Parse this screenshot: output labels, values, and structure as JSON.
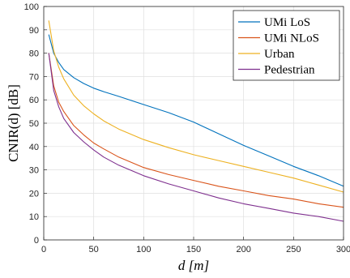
{
  "chart_data": {
    "type": "line",
    "xlabel": "d [m]",
    "ylabel": "CNIR(d) [dB]",
    "xlim": [
      0,
      300
    ],
    "ylim": [
      0,
      100
    ],
    "xticks": [
      0,
      50,
      100,
      150,
      200,
      250,
      300
    ],
    "yticks": [
      0,
      10,
      20,
      30,
      40,
      50,
      60,
      70,
      80,
      90,
      100
    ],
    "grid": true,
    "legend_position": "top-right",
    "colors": {
      "umi_los": "#0072BD",
      "umi_nlos": "#D95319",
      "urban": "#EDB120",
      "pedestrian": "#7E2F8E"
    },
    "series": [
      {
        "name": "UMi LoS",
        "color": "#0072BD",
        "x": [
          5,
          10,
          15,
          20,
          30,
          40,
          50,
          60,
          75,
          100,
          125,
          150,
          175,
          200,
          225,
          250,
          275,
          300
        ],
        "y": [
          88,
          80,
          76,
          73,
          69.5,
          67,
          65,
          63.5,
          61.5,
          58,
          54.5,
          50.5,
          45.5,
          40.5,
          36,
          31.5,
          27.5,
          23
        ]
      },
      {
        "name": "UMi NLoS",
        "color": "#D95319",
        "x": [
          5,
          10,
          15,
          20,
          30,
          40,
          50,
          60,
          75,
          100,
          125,
          150,
          175,
          200,
          225,
          250,
          275,
          300
        ],
        "y": [
          80,
          66,
          59,
          55,
          49,
          45,
          41.5,
          39,
          35.5,
          31,
          28,
          25.5,
          23,
          21,
          19,
          17.5,
          15.5,
          14
        ]
      },
      {
        "name": "Urban",
        "color": "#EDB120",
        "x": [
          5,
          10,
          15,
          20,
          30,
          40,
          50,
          60,
          75,
          100,
          125,
          150,
          175,
          200,
          225,
          250,
          275,
          300
        ],
        "y": [
          94,
          81,
          74,
          69,
          62,
          57.5,
          54,
          51,
          47.5,
          43,
          39.5,
          36.5,
          34,
          31.5,
          29,
          26.5,
          23.5,
          20.5
        ]
      },
      {
        "name": "Pedestrian",
        "color": "#7E2F8E",
        "x": [
          5,
          10,
          15,
          20,
          30,
          40,
          50,
          60,
          75,
          100,
          125,
          150,
          175,
          200,
          225,
          250,
          275,
          300
        ],
        "y": [
          80,
          64,
          57,
          52,
          46,
          42,
          38.5,
          35.5,
          32,
          27.5,
          24,
          21,
          18,
          15.5,
          13.5,
          11.5,
          10,
          8
        ]
      }
    ]
  }
}
